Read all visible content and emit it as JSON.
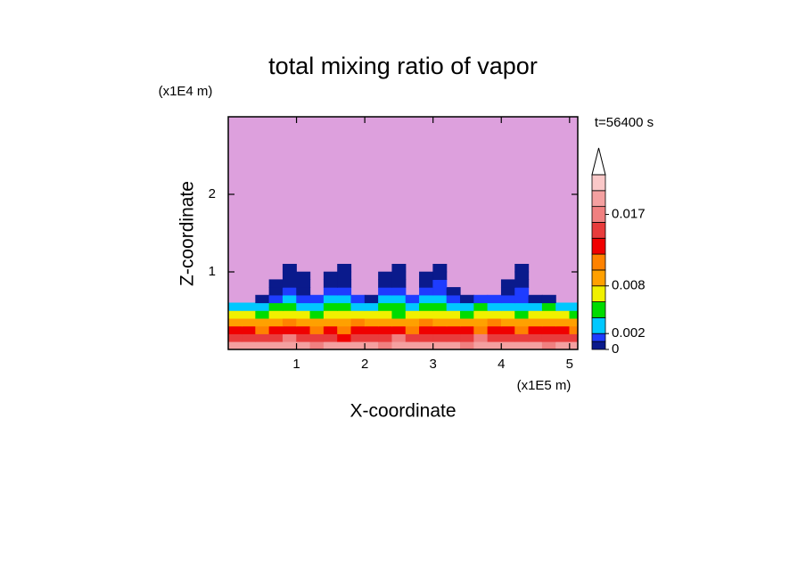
{
  "chart_data": {
    "type": "contour",
    "title": "total mixing ratio of vapor",
    "x_label": "X-coordinate",
    "y_label": "Z-coordinate",
    "x_unit": "(x1E5 m)",
    "y_unit": "(x1E4 m)",
    "annotation": "t=56400 s",
    "xlim": [
      0,
      5.12
    ],
    "ylim": [
      0,
      3
    ],
    "xticks": [
      1,
      2,
      3,
      4,
      5
    ],
    "yticks": [
      1,
      2
    ],
    "background": "#dda0dd",
    "x": [
      0.1,
      0.3,
      0.5,
      0.7,
      0.9,
      1.1,
      1.3,
      1.5,
      1.7,
      1.9,
      2.1,
      2.3,
      2.5,
      2.7,
      2.9,
      3.1,
      3.3,
      3.5,
      3.7,
      3.9,
      4.1,
      4.3,
      4.5,
      4.7,
      4.9,
      5.1
    ],
    "y": [
      0.05,
      0.15,
      0.25,
      0.35,
      0.45,
      0.55,
      0.65,
      0.75,
      0.85,
      0.95,
      1.05
    ],
    "z": [
      [
        0.018,
        0.019,
        0.018,
        0.018,
        0.019,
        0.018,
        0.017,
        0.018,
        0.019,
        0.018,
        0.018,
        0.017,
        0.019,
        0.018,
        0.018,
        0.019,
        0.018,
        0.017,
        0.018,
        0.019,
        0.018,
        0.018,
        0.019,
        0.017,
        0.018,
        0.019
      ],
      [
        0.015,
        0.015,
        0.014,
        0.015,
        0.016,
        0.015,
        0.014,
        0.015,
        0.013,
        0.015,
        0.014,
        0.015,
        0.016,
        0.015,
        0.014,
        0.015,
        0.015,
        0.014,
        0.016,
        0.015,
        0.015,
        0.014,
        0.015,
        0.015,
        0.014,
        0.015
      ],
      [
        0.012,
        0.012,
        0.011,
        0.012,
        0.013,
        0.012,
        0.011,
        0.012,
        0.011,
        0.012,
        0.012,
        0.013,
        0.012,
        0.011,
        0.012,
        0.012,
        0.013,
        0.012,
        0.011,
        0.012,
        0.012,
        0.011,
        0.012,
        0.013,
        0.012,
        0.011
      ],
      [
        0.009,
        0.009,
        0.008,
        0.009,
        0.01,
        0.009,
        0.008,
        0.009,
        0.009,
        0.01,
        0.009,
        0.008,
        0.009,
        0.009,
        0.01,
        0.009,
        0.008,
        0.009,
        0.009,
        0.01,
        0.009,
        0.009,
        0.008,
        0.009,
        0.009,
        0.008
      ],
      [
        0.0065,
        0.006,
        0.0055,
        0.0065,
        0.007,
        0.006,
        0.0055,
        0.006,
        0.0075,
        0.0065,
        0.006,
        0.0065,
        0.0055,
        0.0065,
        0.007,
        0.006,
        0.0065,
        0.0055,
        0.006,
        0.0065,
        0.006,
        0.0055,
        0.006,
        0.0065,
        0.006,
        0.0055
      ],
      [
        0.003,
        0.0035,
        0.003,
        0.004,
        0.0045,
        0.0035,
        0.003,
        0.0045,
        0.005,
        0.0035,
        0.003,
        0.004,
        0.0045,
        0.0035,
        0.004,
        0.0045,
        0.003,
        0.0035,
        0.004,
        0.003,
        0.0035,
        0.003,
        0.0035,
        0.004,
        0.003,
        0.0025
      ],
      [
        null,
        null,
        0.0008,
        0.0015,
        0.0025,
        0.0012,
        0.001,
        0.003,
        0.0025,
        0.0015,
        0.0008,
        0.002,
        0.0025,
        0.0015,
        0.0022,
        0.003,
        0.0015,
        0.0008,
        0.0012,
        0.001,
        0.0018,
        0.0012,
        0.0008,
        0.0005,
        null,
        null
      ],
      [
        null,
        null,
        null,
        0.0008,
        0.0012,
        0.0008,
        null,
        0.0015,
        0.0012,
        null,
        null,
        0.001,
        0.0015,
        null,
        0.0012,
        0.0018,
        0.0008,
        null,
        null,
        null,
        0.0008,
        0.0012,
        null,
        null,
        null,
        null
      ],
      [
        null,
        null,
        null,
        0.0008,
        0.0009,
        0.0007,
        null,
        0.0008,
        0.0007,
        null,
        null,
        0.0008,
        0.0009,
        null,
        0.0008,
        0.001,
        null,
        null,
        null,
        null,
        0.0007,
        0.0009,
        null,
        null,
        null,
        null
      ],
      [
        null,
        null,
        null,
        null,
        0.0008,
        0.0007,
        null,
        0.0007,
        0.0008,
        null,
        null,
        0.0007,
        0.0008,
        null,
        0.0007,
        0.0008,
        null,
        null,
        null,
        null,
        null,
        0.0008,
        null,
        null,
        null,
        null
      ],
      [
        null,
        null,
        null,
        null,
        0.0005,
        null,
        null,
        null,
        0.0006,
        null,
        null,
        null,
        0.0005,
        null,
        null,
        0.0006,
        null,
        null,
        null,
        null,
        null,
        0.0005,
        null,
        null,
        null,
        null
      ]
    ],
    "colorbar": {
      "levels": [
        0,
        0.001,
        0.002,
        0.004,
        0.006,
        0.008,
        0.01,
        0.012,
        0.014,
        0.016,
        0.018,
        0.02,
        0.022
      ],
      "colors": [
        "#0a1a8c",
        "#1e3cff",
        "#00c8ff",
        "#00dc00",
        "#f0f000",
        "#ffa000",
        "#ff8200",
        "#f00000",
        "#e83c3c",
        "#f08080",
        "#f4a0a0",
        "#fac8c8"
      ],
      "ticks": [
        0,
        0.002,
        0.008,
        0.017
      ],
      "extend": "max"
    }
  }
}
